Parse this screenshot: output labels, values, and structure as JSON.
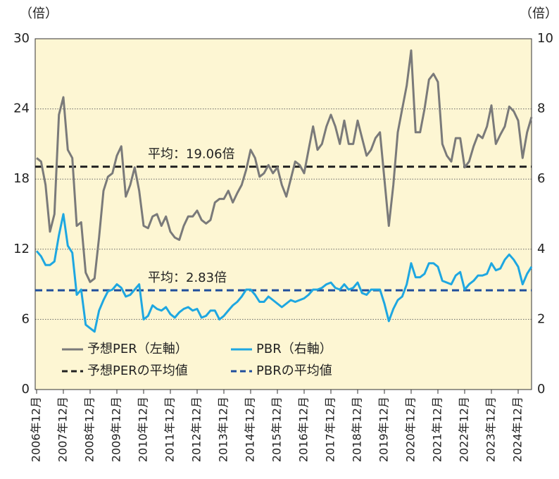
{
  "chart_data": {
    "type": "line",
    "y_unit_label": "（倍）",
    "y2_unit_label": "（倍）",
    "categories": [
      "2006年12月",
      null,
      null,
      null,
      null,
      null,
      "2007年12月",
      null,
      null,
      null,
      null,
      null,
      "2008年12月",
      null,
      null,
      null,
      null,
      null,
      "2009年12月",
      null,
      null,
      null,
      null,
      null,
      "2010年12月",
      null,
      null,
      null,
      null,
      null,
      "2011年12月",
      null,
      null,
      null,
      null,
      null,
      "2012年12月",
      null,
      null,
      null,
      null,
      null,
      "2013年12月",
      null,
      null,
      null,
      null,
      null,
      "2014年12月",
      null,
      null,
      null,
      null,
      null,
      "2015年12月",
      null,
      null,
      null,
      null,
      null,
      "2016年12月",
      null,
      null,
      null,
      null,
      null,
      "2017年12月",
      null,
      null,
      null,
      null,
      null,
      "2018年12月",
      null,
      null,
      null,
      null,
      null,
      "2019年12月",
      null,
      null,
      null,
      null,
      null,
      "2020年12月",
      null,
      null,
      null,
      null,
      null,
      "2021年12月",
      null,
      null,
      null,
      null,
      null,
      "2022年12月",
      null,
      null,
      null,
      null,
      null,
      "2023年12月",
      null,
      null,
      null,
      null,
      null,
      "2024年12月",
      null,
      null,
      null
    ],
    "series": [
      {
        "name": "予想PER（左軸）",
        "color": "#7a7a7a",
        "axis": "y",
        "values": [
          19.8,
          19.5,
          17.5,
          13.5,
          15,
          23.5,
          25,
          20.5,
          19.8,
          14,
          14.3,
          10,
          9.2,
          9.5,
          13,
          17,
          18.2,
          18.5,
          20,
          20.8,
          16.5,
          17.5,
          19,
          17,
          14,
          13.8,
          14.8,
          15,
          14,
          14.8,
          13.5,
          13,
          12.8,
          14,
          14.8,
          14.8,
          15.3,
          14.5,
          14.2,
          14.5,
          16,
          16.3,
          16.3,
          17,
          16,
          16.8,
          17.5,
          18.8,
          20.5,
          19.8,
          18.2,
          18.5,
          19.2,
          18.5,
          19,
          17.5,
          16.5,
          18,
          19.5,
          19.2,
          18.5,
          20.5,
          22.5,
          20.5,
          21,
          22.5,
          23.5,
          22.5,
          21,
          23,
          21,
          21,
          23,
          21.5,
          20,
          20.5,
          21.5,
          22,
          18,
          14,
          17.5,
          22,
          24,
          26,
          29,
          22,
          22,
          24,
          26.5,
          27,
          26.3,
          21,
          20,
          19.5,
          21.5,
          21.5,
          19,
          19.5,
          20.8,
          21.8,
          21.5,
          22.5,
          24.3,
          21,
          21.8,
          22.5,
          24.2,
          23.8,
          23,
          19.8,
          22,
          23.3
        ]
      },
      {
        "name": "PBR（右軸）",
        "color": "#1ea7e1",
        "axis": "y2",
        "values": [
          3.95,
          3.8,
          3.55,
          3.55,
          3.65,
          4.4,
          5.0,
          4.1,
          3.9,
          2.7,
          2.85,
          1.85,
          1.75,
          1.65,
          2.25,
          2.55,
          2.8,
          2.85,
          3.0,
          2.9,
          2.65,
          2.7,
          2.85,
          3.0,
          2.0,
          2.1,
          2.4,
          2.3,
          2.25,
          2.35,
          2.15,
          2.05,
          2.2,
          2.3,
          2.35,
          2.25,
          2.3,
          2.05,
          2.1,
          2.25,
          2.25,
          2.0,
          2.1,
          2.25,
          2.4,
          2.5,
          2.65,
          2.85,
          2.85,
          2.7,
          2.5,
          2.5,
          2.65,
          2.55,
          2.45,
          2.35,
          2.45,
          2.55,
          2.5,
          2.55,
          2.6,
          2.7,
          2.85,
          2.85,
          2.9,
          3.0,
          3.05,
          2.9,
          2.85,
          3.0,
          2.85,
          2.9,
          3.05,
          2.75,
          2.7,
          2.85,
          2.85,
          2.85,
          2.45,
          1.95,
          2.3,
          2.55,
          2.65,
          3.0,
          3.6,
          3.2,
          3.2,
          3.3,
          3.6,
          3.6,
          3.5,
          3.1,
          3.05,
          3.0,
          3.25,
          3.35,
          2.85,
          3.0,
          3.1,
          3.25,
          3.25,
          3.3,
          3.6,
          3.4,
          3.45,
          3.7,
          3.85,
          3.7,
          3.5,
          3.0,
          3.3,
          3.5
        ]
      }
    ],
    "reference_lines": [
      {
        "name": "予想PERの平均値",
        "value": 19.06,
        "label": "平均：19.06倍",
        "color": "#222222",
        "axis": "y"
      },
      {
        "name": "PBRの平均値",
        "value": 2.83,
        "label": "平均：2.83倍",
        "color": "#1f4e9c",
        "axis": "y2"
      }
    ],
    "ylim": [
      0,
      30
    ],
    "yticks": [
      0,
      6,
      12,
      18,
      24,
      30
    ],
    "y2lim": [
      0,
      10
    ],
    "y2ticks": [
      0,
      2,
      4,
      6,
      8,
      10
    ],
    "grid": true,
    "background": "#fdf6d3"
  }
}
